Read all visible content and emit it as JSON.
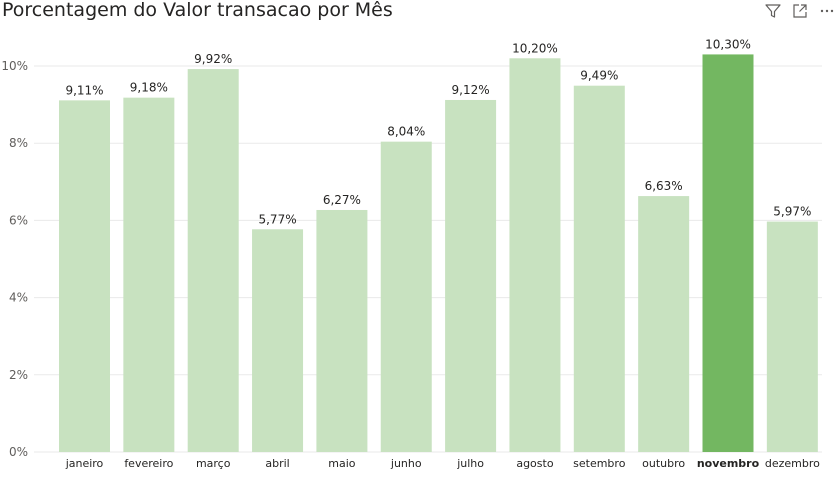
{
  "visual": {
    "title": "Porcentagem do Valor transacao por Mês",
    "toolbar": [
      {
        "name": "filter-icon",
        "label": "Filter"
      },
      {
        "name": "focus-mode-icon",
        "label": "Focus mode"
      },
      {
        "name": "more-options-icon",
        "label": "More options"
      }
    ]
  },
  "colors": {
    "bar": "#c8e2c0",
    "highlight": "#73b761",
    "grid": "#eaeaea",
    "text": "#252423"
  },
  "chart_data": {
    "type": "bar",
    "title": "Porcentagem do Valor transacao por Mês",
    "xlabel": "",
    "ylabel": "",
    "categories": [
      "janeiro",
      "fevereiro",
      "março",
      "abril",
      "maio",
      "junho",
      "julho",
      "agosto",
      "setembro",
      "outubro",
      "novembro",
      "dezembro"
    ],
    "values": [
      9.11,
      9.18,
      9.92,
      5.77,
      6.27,
      8.04,
      9.12,
      10.2,
      9.49,
      6.63,
      10.3,
      5.97
    ],
    "data_labels": [
      "9,11%",
      "9,18%",
      "9,92%",
      "5,77%",
      "6,27%",
      "8,04%",
      "9,12%",
      "10,20%",
      "9,49%",
      "6,63%",
      "10,30%",
      "5,97%"
    ],
    "ylim": [
      0,
      10.5
    ],
    "yticks": [
      0,
      2,
      4,
      6,
      8,
      10
    ],
    "ytick_labels": [
      "0%",
      "2%",
      "4%",
      "6%",
      "8%",
      "10%"
    ],
    "highlight_category": "novembro",
    "grid": true
  }
}
